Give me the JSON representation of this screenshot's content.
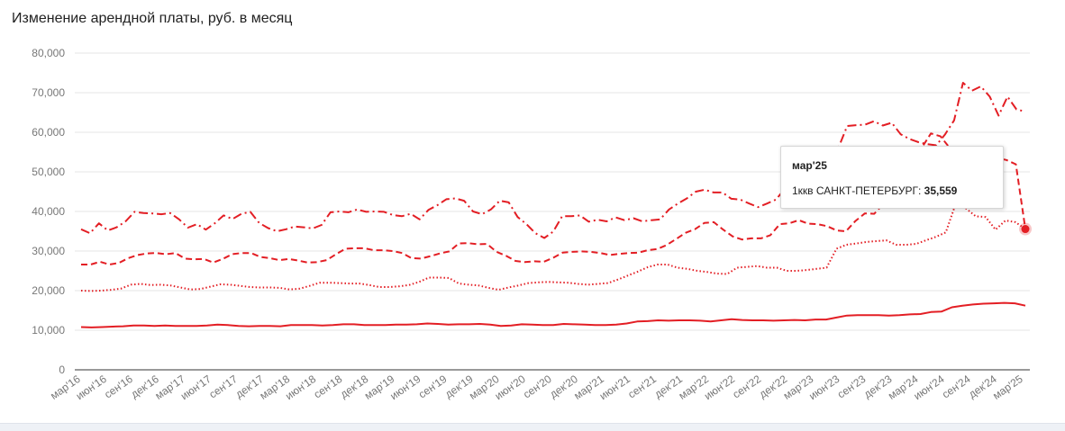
{
  "title": "Изменение арендной платы, руб. в месяц",
  "colors": {
    "line": "#e31e24",
    "grid": "#e6e6e6",
    "axis": "#333333",
    "tick": "#777777"
  },
  "tooltip": {
    "title": "мар'25",
    "series": "1ккв САНКТ-ПЕТЕРБУРГ",
    "sep": ": ",
    "value": "35,559"
  },
  "chart_data": {
    "type": "line",
    "title": "Изменение арендной платы, руб. в месяц",
    "ylim": [
      0,
      80000
    ],
    "y_ticks": [
      {
        "v": 0,
        "label": "0"
      },
      {
        "v": 10000,
        "label": "10,000"
      },
      {
        "v": 20000,
        "label": "20,000"
      },
      {
        "v": 30000,
        "label": "30,000"
      },
      {
        "v": 40000,
        "label": "40,000"
      },
      {
        "v": 50000,
        "label": "50,000"
      },
      {
        "v": 60000,
        "label": "60,000"
      },
      {
        "v": 70000,
        "label": "70,000"
      },
      {
        "v": 80000,
        "label": "80,000"
      }
    ],
    "grid": true,
    "x_labels": [
      "мар'16",
      "июн'16",
      "сен'16",
      "дек'16",
      "мар'17",
      "июн'17",
      "сен'17",
      "дек'17",
      "мар'18",
      "июн'18",
      "сен'18",
      "дек'18",
      "мар'19",
      "июн'19",
      "сен'19",
      "дек'19",
      "мар'20",
      "июн'20",
      "сен'20",
      "дек'20",
      "мар'21",
      "июн'21",
      "сен'21",
      "дек'21",
      "мар'22",
      "июн'22",
      "сен'22",
      "дек'22",
      "мар'23",
      "июн'23",
      "сен'23",
      "дек'23",
      "мар'24",
      "июн'24",
      "сен'24",
      "дек'24",
      "мар'25"
    ],
    "series": [
      {
        "style": "solid",
        "values": [
          10800,
          10700,
          10800,
          10900,
          11000,
          11200,
          11200,
          11100,
          11200,
          11100,
          11100,
          11100,
          11200,
          11400,
          11300,
          11100,
          11000,
          11100,
          11100,
          11000,
          11300,
          11300,
          11300,
          11200,
          11300,
          11500,
          11500,
          11300,
          11300,
          11300,
          11400,
          11400,
          11500,
          11700,
          11600,
          11400,
          11500,
          11500,
          11600,
          11400,
          11100,
          11200,
          11500,
          11400,
          11300,
          11300,
          11600,
          11500,
          11400,
          11300,
          11300,
          11400,
          11700,
          12200,
          12300,
          12500,
          12400,
          12500,
          12500,
          12400,
          12200,
          12500,
          12800,
          12600,
          12500,
          12500,
          12400,
          12500,
          12600,
          12500,
          12700,
          12700,
          13200,
          13700,
          13800,
          13800,
          13800,
          13700,
          13800,
          14000,
          14100,
          14600,
          14700,
          15800,
          16200,
          16500,
          16700,
          16800,
          16900,
          16800,
          16200
        ]
      },
      {
        "style": "dotted",
        "values": [
          20000,
          19900,
          20000,
          20200,
          20500,
          21500,
          21700,
          21400,
          21500,
          21300,
          20800,
          20300,
          20400,
          21000,
          21600,
          21500,
          21200,
          20900,
          20800,
          20800,
          20700,
          20300,
          20500,
          21200,
          22000,
          22000,
          21900,
          21800,
          21800,
          21400,
          20900,
          20900,
          21100,
          21400,
          22200,
          23300,
          23300,
          23200,
          21800,
          21500,
          21300,
          20700,
          20200,
          20800,
          21300,
          21900,
          22100,
          22200,
          22100,
          22000,
          21700,
          21500,
          21700,
          21900,
          22800,
          23800,
          24800,
          25900,
          26600,
          26600,
          25800,
          25500,
          25000,
          24700,
          24300,
          24200,
          25800,
          26000,
          26200,
          25800,
          25800,
          25000,
          25000,
          25200,
          25500,
          25800,
          30600,
          31600,
          31900,
          32300,
          32500,
          32700,
          31600,
          31600,
          31800,
          32700,
          33600,
          34700,
          42000,
          40800,
          38800,
          38600,
          35400,
          37700,
          37300,
          35600
        ]
      },
      {
        "style": "dashed",
        "values": [
          26600,
          26600,
          27300,
          26600,
          27000,
          28200,
          29000,
          29400,
          29500,
          29200,
          29500,
          28100,
          27900,
          28000,
          27100,
          28000,
          29200,
          29500,
          29500,
          28500,
          28200,
          27700,
          28000,
          27600,
          27100,
          27200,
          27700,
          29200,
          30600,
          30700,
          30700,
          30200,
          30200,
          30000,
          29500,
          28200,
          28100,
          28700,
          29400,
          29900,
          31900,
          32000,
          31700,
          31800,
          29800,
          28800,
          27500,
          27200,
          27400,
          27300,
          28300,
          29600,
          29800,
          29900,
          29800,
          29500,
          29000,
          29300,
          29500,
          29600,
          30200,
          30500,
          31500,
          33000,
          34600,
          35500,
          37100,
          37300,
          35400,
          33700,
          32900,
          33200,
          33200,
          34000,
          36800,
          37000,
          37800,
          36900,
          36800,
          36300,
          35200,
          35000,
          37600,
          39500,
          39400,
          42000,
          44500,
          47000,
          52000,
          56000,
          59700,
          59000,
          56000,
          54500,
          52200,
          51500,
          51800,
          53500,
          53000,
          51900,
          35559
        ]
      },
      {
        "style": "dashdot",
        "values": [
          35500,
          34500,
          37000,
          35200,
          36000,
          37500,
          39900,
          39600,
          39500,
          39300,
          39600,
          38000,
          35900,
          36800,
          35400,
          37000,
          39000,
          38100,
          39400,
          39900,
          37100,
          35800,
          35000,
          35500,
          36200,
          36000,
          35700,
          36600,
          39800,
          40000,
          39800,
          40500,
          39900,
          40000,
          39900,
          39100,
          38800,
          39400,
          38000,
          40400,
          41600,
          43100,
          43300,
          42700,
          40000,
          39300,
          40500,
          42700,
          42300,
          38600,
          36800,
          34500,
          33300,
          34900,
          38800,
          38800,
          39000,
          37400,
          37900,
          37500,
          38500,
          37800,
          38300,
          37500,
          37800,
          38000,
          40500,
          42000,
          43300,
          45000,
          45500,
          44800,
          44800,
          43200,
          43000,
          42000,
          41100,
          42000,
          43000,
          45700,
          45800,
          45900,
          46500,
          49500,
          52000,
          56000,
          61600,
          61800,
          61900,
          62800,
          61700,
          62400,
          59500,
          58300,
          57500,
          57000,
          56700,
          59500,
          63000,
          72500,
          70500,
          71600,
          69000,
          64200,
          69000,
          65800,
          65200
        ]
      }
    ],
    "highlight": {
      "series_index": 2,
      "point": "last",
      "value": 35559
    }
  }
}
